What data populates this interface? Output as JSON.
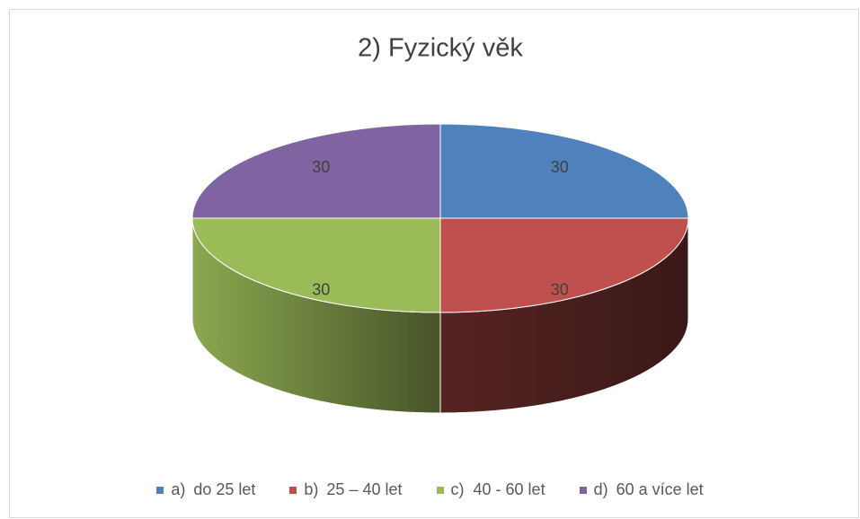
{
  "chart_data": {
    "type": "pie3d",
    "title": "2) Fyzický věk",
    "categories": [
      "a)\tdo 25 let",
      "b)\t25 – 40 let",
      "c)\t40 - 60 let",
      "d)\t60 a více let"
    ],
    "values": [
      30,
      30,
      30,
      30
    ],
    "colors": [
      "#4f81bd",
      "#c0504d",
      "#9bbb59",
      "#8064a2"
    ],
    "legend": "bottom"
  }
}
